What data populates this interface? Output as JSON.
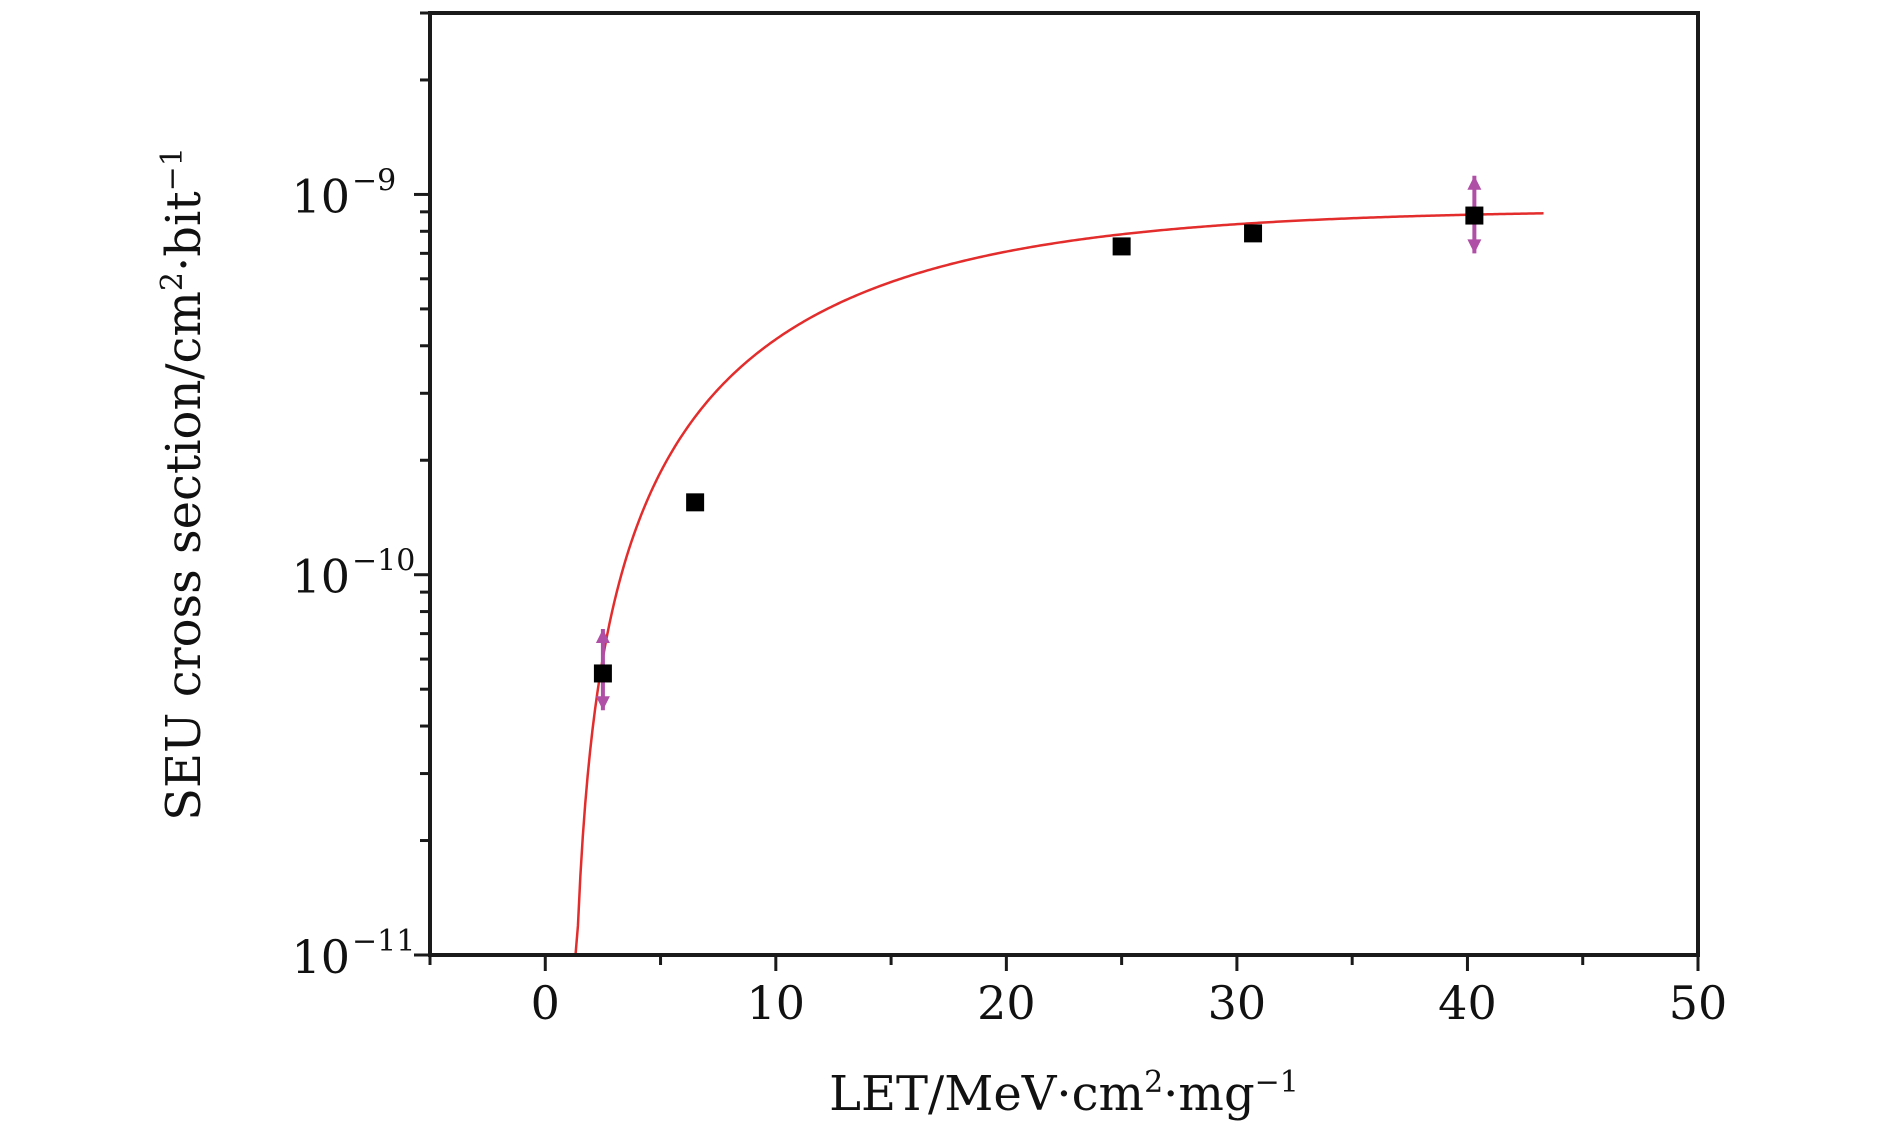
{
  "chart_data": {
    "type": "scatter",
    "title": "",
    "xlabel": {
      "base": "LET/MeV·cm",
      "sup1": "2",
      "mid": "·mg",
      "sup2": "−1"
    },
    "ylabel": {
      "base": "SEU cross section/cm",
      "sup1": "2",
      "mid": "·bit",
      "sup2": "−1"
    },
    "xlim": [
      -5,
      50
    ],
    "ylim": [
      1e-11,
      3e-09
    ],
    "yscale": "log",
    "x_ticks": [
      0,
      10,
      20,
      30,
      40,
      50
    ],
    "x_tick_labels": [
      "0",
      "10",
      "20",
      "30",
      "40",
      "50"
    ],
    "y_ticks": [
      {
        "value": 1e-11,
        "base": "10",
        "exp": "−11"
      },
      {
        "value": 1e-10,
        "base": "10",
        "exp": "−10"
      },
      {
        "value": 1e-09,
        "base": "10",
        "exp": "−9"
      }
    ],
    "grid": false,
    "legend": "none",
    "series": [
      {
        "kind": "points",
        "color": "#000000",
        "x": [
          2.5,
          6.5,
          25,
          30.7,
          40.3
        ],
        "y": [
          5.5e-11,
          1.55e-10,
          7.3e-10,
          7.9e-10,
          8.8e-10
        ],
        "err_low": [
          4.4e-11,
          null,
          null,
          null,
          7e-10
        ],
        "err_high": [
          7.2e-11,
          null,
          null,
          null,
          1.12e-09
        ],
        "err_color": "#b04fa6"
      },
      {
        "kind": "fit",
        "model": "weibull",
        "color": "#e32d2d",
        "params": {
          "sigma_sat": 9.1e-10,
          "L0": 1.05,
          "W": 13.5,
          "s": 1.2
        },
        "x_range": [
          1.1,
          43.3
        ]
      }
    ],
    "colors": {
      "axes": "#1a1a1a",
      "fit": "#e32d2d",
      "points": "#000000",
      "error_bars": "#b04fa6"
    }
  }
}
